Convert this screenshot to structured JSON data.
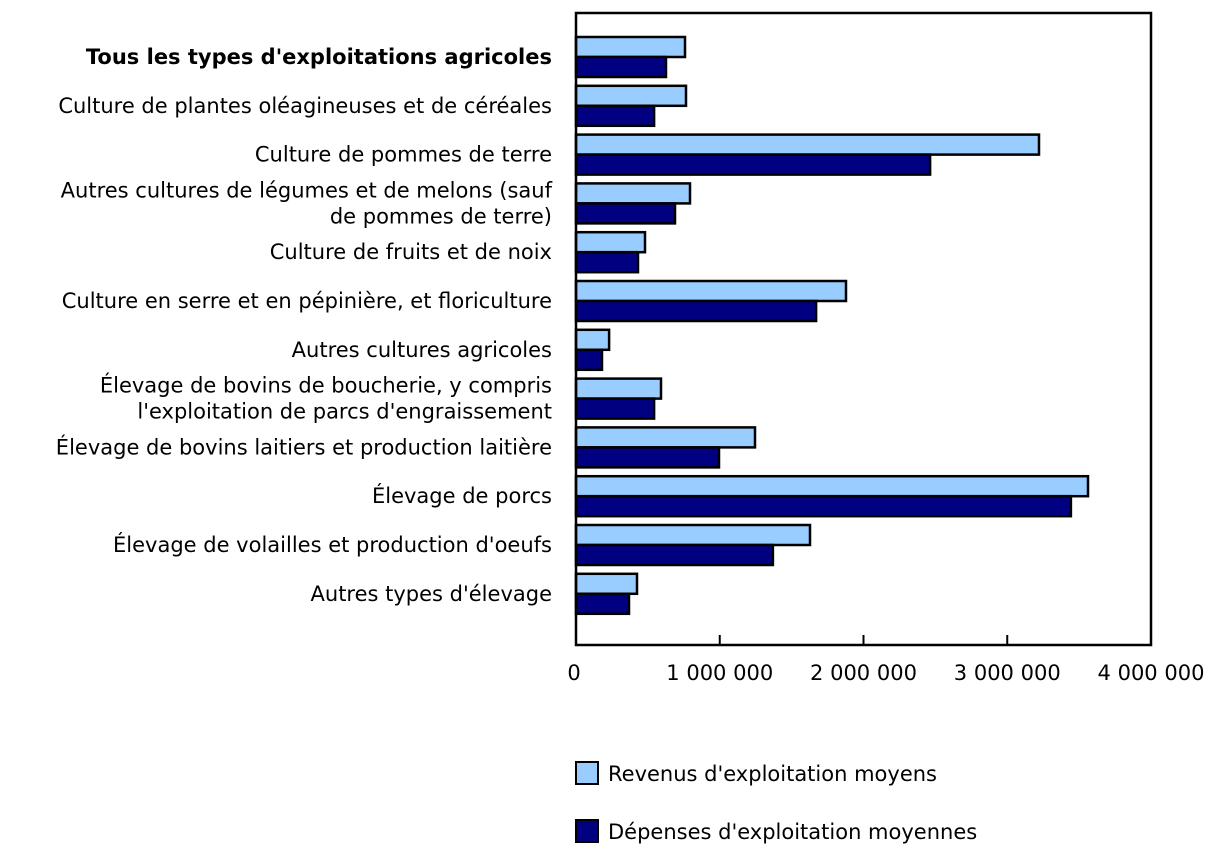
{
  "chart_data": {
    "type": "bar",
    "orientation": "horizontal",
    "title": "",
    "xlabel": "",
    "ylabel": "",
    "xlim": [
      0,
      4000000
    ],
    "grid": false,
    "legend_position": "bottom",
    "x_ticks": [
      0,
      1000000,
      2000000,
      3000000,
      4000000
    ],
    "x_tick_labels": [
      "0",
      "1 000 000",
      "2 000 000",
      "3 000 000",
      "4 000 000"
    ],
    "categories": [
      "Tous les types d'exploitations agricoles",
      "Culture de plantes oléagineuses et de céréales",
      "Culture de pommes de terre",
      "Autres cultures de légumes et de melons (sauf de pommes de terre)",
      "Culture de fruits et de noix",
      "Culture en serre et en pépinière, et floriculture",
      "Autres cultures agricoles",
      "Élevage de bovins de boucherie, y compris l'exploitation de parcs d'engraissement",
      "Élevage de bovins laitiers et production laitière",
      "Élevage de porcs",
      "Élevage de volailles et production d'oeufs",
      "Autres types d'élevage"
    ],
    "category_label_lines": [
      [
        "Tous les types d'exploitations agricoles"
      ],
      [
        "Culture de plantes oléagineuses et de céréales"
      ],
      [
        "Culture de pommes de terre"
      ],
      [
        "Autres cultures de légumes et de melons (sauf",
        "de pommes de terre)"
      ],
      [
        "Culture de fruits et de noix"
      ],
      [
        "Culture en serre et en pépinière, et floriculture"
      ],
      [
        "Autres cultures agricoles"
      ],
      [
        "Élevage de bovins de boucherie, y compris",
        "l'exploitation de parcs d'engraissement"
      ],
      [
        "Élevage de bovins laitiers et production laitière"
      ],
      [
        "Élevage de porcs"
      ],
      [
        "Élevage de volailles et production d'oeufs"
      ],
      [
        "Autres types d'élevage"
      ]
    ],
    "bold_categories": [
      0
    ],
    "series": [
      {
        "name": "Revenus d'exploitation moyens",
        "color": "#99ccff",
        "values": [
          758000,
          765000,
          3221000,
          793000,
          480000,
          1878000,
          230000,
          591000,
          1245000,
          3562000,
          1628000,
          424000
        ]
      },
      {
        "name": "Dépenses d'exploitation moyennes",
        "color": "#000080",
        "values": [
          626000,
          543000,
          2463000,
          689000,
          431000,
          1670000,
          181000,
          543000,
          995000,
          3443000,
          1370000,
          369000
        ]
      }
    ]
  },
  "legend": {
    "items": [
      {
        "label": "Revenus d'exploitation moyens",
        "color": "#99ccff"
      },
      {
        "label": "Dépenses d'exploitation moyennes",
        "color": "#000080"
      }
    ]
  }
}
